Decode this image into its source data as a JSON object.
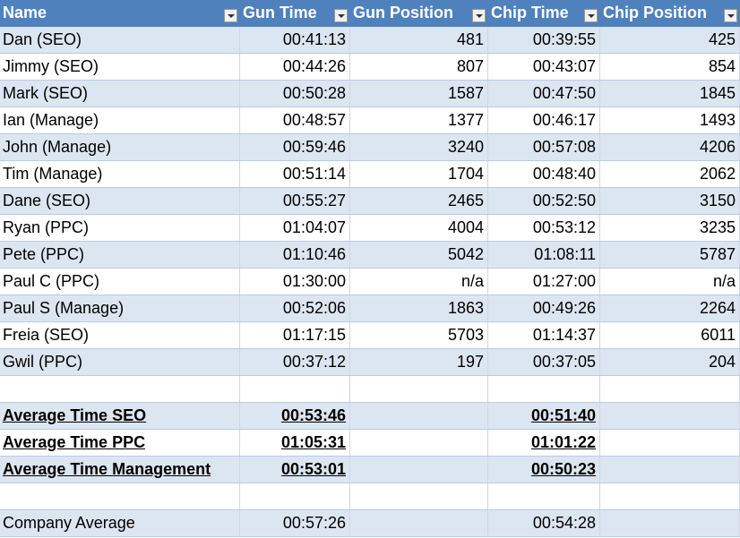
{
  "table": {
    "columns": [
      "Name",
      "Gun Time",
      "Gun Position",
      "Chip Time",
      "Chip Position"
    ],
    "rows": [
      [
        "Dan (SEO)",
        "00:41:13",
        481,
        "00:39:55",
        425
      ],
      [
        "Jimmy (SEO)",
        "00:44:26",
        807,
        "00:43:07",
        854
      ],
      [
        "Mark (SEO)",
        "00:50:28",
        1587,
        "00:47:50",
        1845
      ],
      [
        "Ian (Manage)",
        "00:48:57",
        1377,
        "00:46:17",
        1493
      ],
      [
        "John (Manage)",
        "00:59:46",
        3240,
        "00:57:08",
        4206
      ],
      [
        "Tim (Manage)",
        "00:51:14",
        1704,
        "00:48:40",
        2062
      ],
      [
        "Dane (SEO)",
        "00:55:27",
        2465,
        "00:52:50",
        3150
      ],
      [
        "Ryan (PPC)",
        "01:04:07",
        4004,
        "00:53:12",
        3235
      ],
      [
        "Pete (PPC)",
        "01:10:46",
        5042,
        "01:08:11",
        5787
      ],
      [
        "Paul C (PPC)",
        "01:30:00",
        "n/a",
        "01:27:00",
        "n/a"
      ],
      [
        "Paul S (Manage)",
        "00:52:06",
        1863,
        "00:49:26",
        2264
      ],
      [
        "Freia (SEO)",
        "01:17:15",
        5703,
        "01:14:37",
        6011
      ],
      [
        "Gwil (PPC)",
        "00:37:12",
        197,
        "00:37:05",
        204
      ]
    ],
    "averages": [
      [
        "Average Time SEO",
        "00:53:46",
        "00:51:40"
      ],
      [
        "Average Time PPC",
        "01:05:31",
        "01:01:22"
      ],
      [
        "Average Time Management",
        "00:53:01",
        "00:50:23"
      ]
    ],
    "company_average": [
      "Company Average",
      "00:57:26",
      "00:54:28"
    ]
  }
}
